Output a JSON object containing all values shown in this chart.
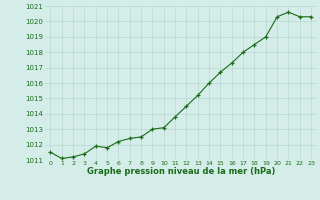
{
  "hours": [
    0,
    1,
    2,
    3,
    4,
    5,
    6,
    7,
    8,
    9,
    10,
    11,
    12,
    13,
    14,
    15,
    16,
    17,
    18,
    19,
    20,
    21,
    22,
    23
  ],
  "pressure": [
    1011.5,
    1011.1,
    1011.2,
    1011.4,
    1011.9,
    1011.8,
    1012.2,
    1012.4,
    1012.5,
    1013.0,
    1013.1,
    1013.8,
    1014.5,
    1015.2,
    1016.0,
    1016.7,
    1017.3,
    1018.0,
    1018.5,
    1019.0,
    1020.3,
    1020.6,
    1020.3,
    1020.3
  ],
  "ylim": [
    1011,
    1021
  ],
  "yticks": [
    1011,
    1012,
    1013,
    1014,
    1015,
    1016,
    1017,
    1018,
    1019,
    1020,
    1021
  ],
  "xticks": [
    0,
    1,
    2,
    3,
    4,
    5,
    6,
    7,
    8,
    9,
    10,
    11,
    12,
    13,
    14,
    15,
    16,
    17,
    18,
    19,
    20,
    21,
    22,
    23
  ],
  "line_color": "#1a6b1a",
  "marker_color": "#1a6b1a",
  "bg_color": "#d4ede8",
  "grid_color": "#b8d8d0",
  "xlabel": "Graphe pression niveau de la mer (hPa)",
  "xlabel_color": "#1a6b1a",
  "tick_color": "#1a6b1a"
}
